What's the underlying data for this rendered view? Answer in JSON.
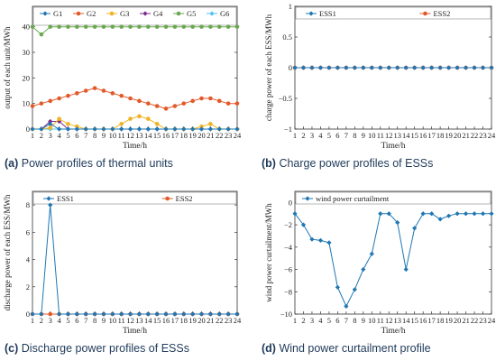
{
  "colors": {
    "blue": "#1f77b4",
    "orange": "#e3592a",
    "yellow": "#f0b323",
    "purple": "#7b2a8a",
    "green": "#6aa84f",
    "cyan": "#4fc3f7",
    "caption_text": "#1f3a5a"
  },
  "captions": [
    {
      "letter": "(a)",
      "text": "Power profiles of thermal units"
    },
    {
      "letter": "(b)",
      "text": "Charge power profiles of ESSs"
    },
    {
      "letter": "(c)",
      "text": "Discharge power profiles of ESSs"
    },
    {
      "letter": "(d)",
      "text": "Wind power curtailment profile"
    }
  ],
  "chart_data": [
    {
      "type": "line",
      "xlabel": "Time/h",
      "ylabel": "output of each unit/MWh",
      "x": [
        1,
        2,
        3,
        4,
        5,
        6,
        7,
        8,
        9,
        10,
        11,
        12,
        13,
        14,
        15,
        16,
        17,
        18,
        19,
        20,
        21,
        22,
        23,
        24
      ],
      "xlim": [
        1,
        24
      ],
      "ylim": [
        0,
        48
      ],
      "yticks": [
        0,
        10,
        20,
        30,
        40
      ],
      "grid": false,
      "legend": "top, 2 rows",
      "series": [
        {
          "name": "G1",
          "color": "blue",
          "values": [
            0,
            0,
            2,
            0,
            0,
            0,
            0,
            0,
            0,
            0,
            0,
            0,
            0,
            0,
            0,
            0,
            0,
            0,
            0,
            0,
            0,
            0,
            0,
            0
          ]
        },
        {
          "name": "G2",
          "color": "orange",
          "values": [
            9,
            10,
            11,
            12,
            13,
            14,
            15,
            16,
            15,
            14,
            13,
            12,
            11,
            10,
            9,
            8,
            9,
            10,
            11,
            12,
            12,
            11,
            10,
            10
          ]
        },
        {
          "name": "G3",
          "color": "yellow",
          "values": [
            0,
            0,
            0.5,
            4,
            2,
            1,
            0,
            0,
            0,
            0,
            2,
            4,
            5,
            4,
            2,
            0,
            0,
            0,
            0,
            1,
            2,
            0,
            0,
            0
          ]
        },
        {
          "name": "G4",
          "color": "purple",
          "values": [
            0,
            0,
            3,
            3,
            0,
            0,
            0,
            0,
            0,
            0,
            0,
            0,
            0,
            0,
            0,
            0,
            0,
            0,
            0,
            0,
            0,
            0,
            0,
            0
          ]
        },
        {
          "name": "G5",
          "color": "green",
          "values": [
            40,
            37,
            40,
            40,
            40,
            40,
            40,
            40,
            40,
            40,
            40,
            40,
            40,
            40,
            40,
            40,
            40,
            40,
            40,
            40,
            40,
            40,
            40,
            40
          ]
        },
        {
          "name": "G6",
          "color": "cyan",
          "values": [
            0,
            0,
            0,
            0,
            0,
            0,
            0,
            0,
            0,
            0,
            0,
            0,
            0,
            0,
            0,
            0,
            0,
            0,
            0,
            0,
            0,
            0,
            0,
            0
          ]
        }
      ]
    },
    {
      "type": "line",
      "xlabel": "Time/h",
      "ylabel": "charge power of each ESS/MWh",
      "x": [
        1,
        2,
        3,
        4,
        5,
        6,
        7,
        8,
        9,
        10,
        11,
        12,
        13,
        14,
        15,
        16,
        17,
        18,
        19,
        20,
        21,
        22,
        23,
        24
      ],
      "xlim": [
        1,
        24
      ],
      "ylim": [
        -1,
        1
      ],
      "yticks": [
        -1,
        -0.5,
        0,
        0.5,
        1
      ],
      "ytick_labels": [
        "−1",
        "−0.5",
        "0",
        "0.5",
        "1"
      ],
      "grid": false,
      "legend": "top",
      "series": [
        {
          "name": "ESS1",
          "color": "blue",
          "values": [
            0,
            0,
            0,
            0,
            0,
            0,
            0,
            0,
            0,
            0,
            0,
            0,
            0,
            0,
            0,
            0,
            0,
            0,
            0,
            0,
            0,
            0,
            0,
            0
          ]
        },
        {
          "name": "ESS2",
          "color": "orange",
          "values": [
            0,
            0,
            0,
            0,
            0,
            0,
            0,
            0,
            0,
            0,
            0,
            0,
            0,
            0,
            0,
            0,
            0,
            0,
            0,
            0,
            0,
            0,
            0,
            0
          ]
        }
      ]
    },
    {
      "type": "line",
      "xlabel": "Time/h",
      "ylabel": "discharge power of each ESS/MWh",
      "x": [
        1,
        2,
        3,
        4,
        5,
        6,
        7,
        8,
        9,
        10,
        11,
        12,
        13,
        14,
        15,
        16,
        17,
        18,
        19,
        20,
        21,
        22,
        23,
        24
      ],
      "xlim": [
        1,
        24
      ],
      "ylim": [
        0,
        9
      ],
      "yticks": [
        0,
        2,
        4,
        6,
        8
      ],
      "grid": false,
      "legend": "top",
      "series": [
        {
          "name": "ESS1",
          "color": "blue",
          "values": [
            0,
            0,
            8,
            0,
            0,
            0,
            0,
            0,
            0,
            0,
            0,
            0,
            0,
            0,
            0,
            0,
            0,
            0,
            0,
            0,
            0,
            0,
            0,
            0
          ]
        },
        {
          "name": "ESS2",
          "color": "orange",
          "values": [
            0,
            0,
            0,
            0,
            0,
            0,
            0,
            0,
            0,
            0,
            0,
            0,
            0,
            0,
            0,
            0,
            0,
            0,
            0,
            0,
            0,
            0,
            0,
            0
          ]
        }
      ]
    },
    {
      "type": "line",
      "xlabel": "Time/h",
      "ylabel": "wind power curtailment/MWh",
      "x": [
        1,
        2,
        3,
        4,
        5,
        6,
        7,
        8,
        9,
        10,
        11,
        12,
        13,
        14,
        15,
        16,
        17,
        18,
        19,
        20,
        21,
        22,
        23,
        24
      ],
      "xlim": [
        1,
        24
      ],
      "ylim": [
        -10,
        1
      ],
      "yticks": [
        -10,
        -8,
        -6,
        -4,
        -2,
        0
      ],
      "ytick_labels": [
        "−10",
        "−8",
        "−6",
        "−4",
        "−2",
        "0"
      ],
      "grid": false,
      "legend": "top",
      "series": [
        {
          "name": "wind power curtailment",
          "color": "blue",
          "values": [
            -1,
            -2,
            -3.3,
            -3.4,
            -3.6,
            -7.6,
            -9.3,
            -7.8,
            -6,
            -4.6,
            -1,
            -1,
            -1.8,
            -6,
            -2.3,
            -1,
            -1,
            -1.5,
            -1.2,
            -1,
            -1,
            -1,
            -1,
            -1
          ]
        }
      ]
    }
  ]
}
